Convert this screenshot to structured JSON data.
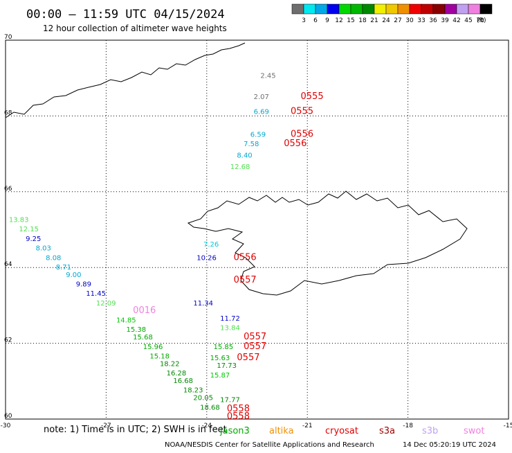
{
  "header": {
    "title": "00:00 – 11:59 UTC 04/15/2024",
    "subtitle": "12 hour collection of altimeter wave heights"
  },
  "legend": {
    "unit": "(ft)",
    "bins": [
      {
        "label": "3",
        "color": "#6e6e6e"
      },
      {
        "label": "6",
        "color": "#00e8f0"
      },
      {
        "label": "9",
        "color": "#00a8e8"
      },
      {
        "label": "12",
        "color": "#0000f0"
      },
      {
        "label": "15",
        "color": "#00d800"
      },
      {
        "label": "18",
        "color": "#00b800"
      },
      {
        "label": "21",
        "color": "#008800"
      },
      {
        "label": "24",
        "color": "#f0f000"
      },
      {
        "label": "27",
        "color": "#f0c800"
      },
      {
        "label": "30",
        "color": "#f09000"
      },
      {
        "label": "33",
        "color": "#f00000"
      },
      {
        "label": "36",
        "color": "#c00000"
      },
      {
        "label": "39",
        "color": "#880000"
      },
      {
        "label": "42",
        "color": "#a000a0"
      },
      {
        "label": "45",
        "color": "#c0a0f0"
      },
      {
        "label": "70",
        "color": "#f080e0"
      },
      {
        "label": "",
        "color": "#000000"
      }
    ]
  },
  "map": {
    "lon_range": [
      -30,
      -15
    ],
    "lat_range": [
      60,
      70
    ],
    "lon_ticks": [
      "-30",
      "-27",
      "-24",
      "-21",
      "-18",
      "-15"
    ],
    "lat_ticks": [
      "70",
      "68",
      "66",
      "64",
      "62",
      "60"
    ],
    "lon_tick_values": [
      -30,
      -27,
      -24,
      -21,
      -18,
      -15
    ],
    "lat_tick_values": [
      70,
      68,
      66,
      64,
      62,
      60
    ]
  },
  "observations": [
    {
      "text": "2.45",
      "lon": -22.4,
      "lat": 69.0,
      "color": "#6e6e6e"
    },
    {
      "text": "2.07",
      "lon": -22.6,
      "lat": 68.45,
      "color": "#6e6e6e"
    },
    {
      "text": "0555",
      "lon": -21.2,
      "lat": 68.45,
      "color": "#e00000"
    },
    {
      "text": "6.69",
      "lon": -22.6,
      "lat": 68.05,
      "color": "#00a8d0"
    },
    {
      "text": "0555",
      "lon": -21.5,
      "lat": 68.05,
      "color": "#e00000"
    },
    {
      "text": "6.59",
      "lon": -22.7,
      "lat": 67.45,
      "color": "#00a8d0"
    },
    {
      "text": "0556",
      "lon": -21.5,
      "lat": 67.45,
      "color": "#e00000"
    },
    {
      "text": "7.58",
      "lon": -22.9,
      "lat": 67.2,
      "color": "#00a8d0"
    },
    {
      "text": "0556",
      "lon": -21.7,
      "lat": 67.2,
      "color": "#e00000"
    },
    {
      "text": "8.40",
      "lon": -23.1,
      "lat": 66.9,
      "color": "#00a8d0"
    },
    {
      "text": "12.68",
      "lon": -23.3,
      "lat": 66.6,
      "color": "#50e050"
    },
    {
      "text": "7.26",
      "lon": -24.1,
      "lat": 64.55,
      "color": "#00c8d8"
    },
    {
      "text": "10.26",
      "lon": -24.3,
      "lat": 64.2,
      "color": "#0000c8"
    },
    {
      "text": "0556",
      "lon": -23.2,
      "lat": 64.2,
      "color": "#e00000"
    },
    {
      "text": "11.34",
      "lon": -24.4,
      "lat": 63.0,
      "color": "#0000c8"
    },
    {
      "text": "0557",
      "lon": -23.2,
      "lat": 63.6,
      "color": "#e00000"
    },
    {
      "text": "13.83",
      "lon": -29.9,
      "lat": 65.2,
      "color": "#50e050"
    },
    {
      "text": "12.15",
      "lon": -29.6,
      "lat": 64.95,
      "color": "#50e050"
    },
    {
      "text": "9.25",
      "lon": -29.4,
      "lat": 64.7,
      "color": "#0000c8"
    },
    {
      "text": "8.03",
      "lon": -29.1,
      "lat": 64.45,
      "color": "#00a8d0"
    },
    {
      "text": "8.08",
      "lon": -28.8,
      "lat": 64.2,
      "color": "#00a8d0"
    },
    {
      "text": "8.71",
      "lon": -28.5,
      "lat": 63.95,
      "color": "#00a8d0"
    },
    {
      "text": "9.00",
      "lon": -28.2,
      "lat": 63.75,
      "color": "#00a8d0"
    },
    {
      "text": "9.89",
      "lon": -27.9,
      "lat": 63.5,
      "color": "#0000c8"
    },
    {
      "text": "11.45",
      "lon": -27.6,
      "lat": 63.25,
      "color": "#0000c8"
    },
    {
      "text": "12.09",
      "lon": -27.3,
      "lat": 63.0,
      "color": "#50e050"
    },
    {
      "text": "0016",
      "lon": -26.2,
      "lat": 62.8,
      "color": "#f080e0"
    },
    {
      "text": "14.85",
      "lon": -26.7,
      "lat": 62.55,
      "color": "#00c800"
    },
    {
      "text": "15.38",
      "lon": -26.4,
      "lat": 62.3,
      "color": "#00a800"
    },
    {
      "text": "15.68",
      "lon": -26.2,
      "lat": 62.1,
      "color": "#00a800"
    },
    {
      "text": "15.96",
      "lon": -25.9,
      "lat": 61.85,
      "color": "#00a800"
    },
    {
      "text": "15.18",
      "lon": -25.7,
      "lat": 61.6,
      "color": "#00a800"
    },
    {
      "text": "18.22",
      "lon": -25.4,
      "lat": 61.4,
      "color": "#008800"
    },
    {
      "text": "16.28",
      "lon": -25.2,
      "lat": 61.15,
      "color": "#008800"
    },
    {
      "text": "16.68",
      "lon": -25.0,
      "lat": 60.95,
      "color": "#008800"
    },
    {
      "text": "18.23",
      "lon": -24.7,
      "lat": 60.7,
      "color": "#008800"
    },
    {
      "text": "20.05",
      "lon": -24.4,
      "lat": 60.5,
      "color": "#008800"
    },
    {
      "text": "18.68",
      "lon": -24.2,
      "lat": 60.25,
      "color": "#008800"
    },
    {
      "text": "17.77",
      "lon": -23.6,
      "lat": 60.45,
      "color": "#008800"
    },
    {
      "text": "11.72",
      "lon": -23.6,
      "lat": 62.6,
      "color": "#0000c8"
    },
    {
      "text": "13.84",
      "lon": -23.6,
      "lat": 62.35,
      "color": "#50e050"
    },
    {
      "text": "15.85",
      "lon": -23.8,
      "lat": 61.85,
      "color": "#00a800"
    },
    {
      "text": "0557",
      "lon": -22.9,
      "lat": 62.1,
      "color": "#e00000"
    },
    {
      "text": "0557",
      "lon": -22.9,
      "lat": 61.85,
      "color": "#e00000"
    },
    {
      "text": "15.63",
      "lon": -23.9,
      "lat": 61.55,
      "color": "#00a800"
    },
    {
      "text": "0557",
      "lon": -23.1,
      "lat": 61.55,
      "color": "#e00000"
    },
    {
      "text": "17.73",
      "lon": -23.7,
      "lat": 61.35,
      "color": "#008800"
    },
    {
      "text": "15.87",
      "lon": -23.9,
      "lat": 61.1,
      "color": "#00c800"
    },
    {
      "text": "0558",
      "lon": -23.4,
      "lat": 60.2,
      "color": "#e00000"
    },
    {
      "text": "0558",
      "lon": -23.4,
      "lat": 60.0,
      "color": "#e00000"
    }
  ],
  "footer": {
    "note": "note:  1) Time is in UTC;  2) SWH is in feet",
    "satellites": [
      {
        "name": "jason3",
        "color": "#00a800"
      },
      {
        "name": "altika",
        "color": "#f09000"
      },
      {
        "name": "cryosat",
        "color": "#e00000"
      },
      {
        "name": "s3a",
        "color": "#a00000"
      },
      {
        "name": "s3b",
        "color": "#c0a0f0"
      },
      {
        "name": "swot",
        "color": "#f080e0"
      }
    ],
    "credit": "NOAA/NESDIS Center for Satellite Applications and Research",
    "timestamp": "14 Dec 05:20:19 UTC 2024"
  }
}
